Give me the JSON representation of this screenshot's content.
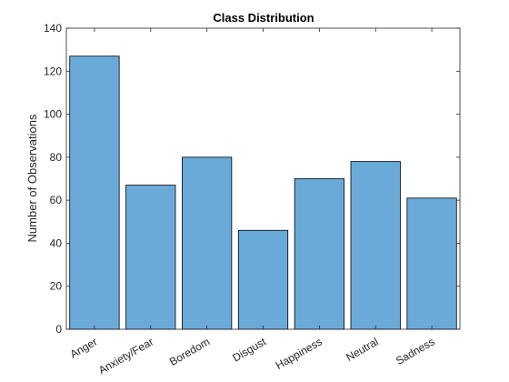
{
  "chart_data": {
    "type": "bar",
    "title": "Class Distribution",
    "xlabel": "",
    "ylabel": "Number of Observations",
    "categories": [
      "Anger",
      "Anxiety/Fear",
      "Boredom",
      "Disgust",
      "Happiness",
      "Neutral",
      "Sadness"
    ],
    "values": [
      127,
      67,
      80,
      46,
      70,
      78,
      61
    ],
    "ylim": [
      0,
      140
    ],
    "yticks": [
      0,
      20,
      40,
      60,
      80,
      100,
      120,
      140
    ],
    "grid": false,
    "legend": "none",
    "colors": {
      "bar_fill": "#6aaad8",
      "bar_edge": "#000000",
      "axis": "#262626"
    }
  }
}
